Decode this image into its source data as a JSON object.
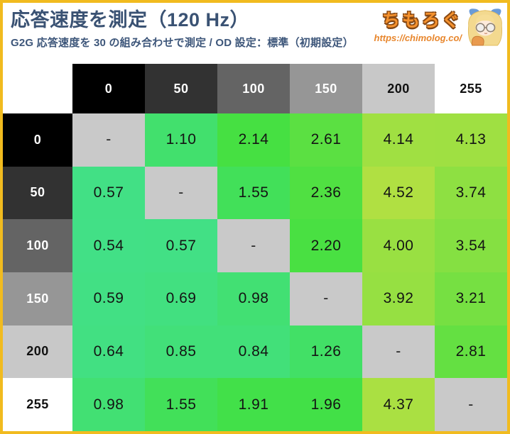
{
  "header": {
    "title": "応答速度を測定（120 Hz）",
    "subtitle": "G2G 応答速度を 30 の組み合わせで測定 / OD 設定：標準（初期設定）"
  },
  "logo": {
    "brand": "ちもろぐ",
    "url": "https://chimolog.co/",
    "mascot_icon": "blonde-girl-glasses-mascot"
  },
  "chart_data": {
    "type": "heatmap",
    "title": "応答速度を測定（120 Hz）",
    "subtitle": "G2G 応答速度を 30 の組み合わせで測定 / OD 設定：標準（初期設定）",
    "x_categories": [
      "0",
      "50",
      "100",
      "150",
      "200",
      "255"
    ],
    "y_categories": [
      "0",
      "50",
      "100",
      "150",
      "200",
      "255"
    ],
    "values": [
      [
        null,
        1.1,
        2.14,
        2.61,
        4.14,
        4.13
      ],
      [
        0.57,
        null,
        1.55,
        2.36,
        4.52,
        3.74
      ],
      [
        0.54,
        0.57,
        null,
        2.2,
        4.0,
        3.54
      ],
      [
        0.59,
        0.69,
        0.98,
        null,
        3.92,
        3.21
      ],
      [
        0.64,
        0.85,
        0.84,
        1.26,
        null,
        2.81
      ],
      [
        0.98,
        1.55,
        1.91,
        1.96,
        4.37,
        null
      ]
    ],
    "null_display": "-",
    "value_decimals": 2,
    "value_range": [
      0.54,
      4.52
    ],
    "legend_position": "none",
    "grid": false
  },
  "style": {
    "level_headers": [
      {
        "label": "0",
        "bg": "#000000",
        "fg": "#ffffff"
      },
      {
        "label": "50",
        "bg": "#323232",
        "fg": "#ffffff"
      },
      {
        "label": "100",
        "bg": "#646464",
        "fg": "#ffffff"
      },
      {
        "label": "150",
        "bg": "#969696",
        "fg": "#ffffff"
      },
      {
        "label": "200",
        "bg": "#c8c8c8",
        "fg": "#111111"
      },
      {
        "label": "255",
        "bg": "#ffffff",
        "fg": "#111111"
      }
    ],
    "colors": {
      "frame_border": "#f1bb1f",
      "title_text": "#3a5273",
      "brand_orange": "#f5922e",
      "url_orange": "#e8862c",
      "cell_fast_green": "#3ce57d",
      "cell_slow_yellow": "#a9d838",
      "diagonal_gray": "#c9c9c9",
      "value_text": "#141414"
    }
  }
}
